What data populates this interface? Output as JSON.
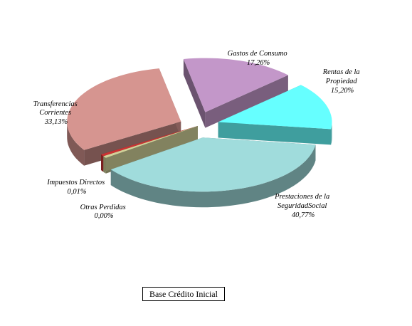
{
  "chart_data": {
    "type": "pie",
    "caption": "Base Crédito  Inicial",
    "slices": [
      {
        "name": "Gastos de Consumo",
        "value_label": "17,26%",
        "value": 17.26,
        "color": "#c397c9",
        "exploded": true
      },
      {
        "name": "Rentas de la Propiedad",
        "value_label": "15,20%",
        "value": 15.2,
        "color": "#66ffff",
        "exploded": true
      },
      {
        "name": "Prestaciones de la SeguridadSocial",
        "value_label": "40,77%",
        "value": 40.77,
        "color": "#a0dcdc",
        "exploded": true
      },
      {
        "name": "Otras Perdidas",
        "value_label": "0,00%",
        "value": 0.0,
        "color": "#d2d29a",
        "exploded": false
      },
      {
        "name": "Impuestos Directos",
        "value_label": "0,01%",
        "value": 0.01,
        "color": "#cc3333",
        "exploded": false
      },
      {
        "name": "Transferencias Corrientes",
        "value_label": "33,13%",
        "value": 33.13,
        "color": "#d69590",
        "exploded": true
      }
    ],
    "label_lines": {
      "gastos": [
        "Gastos de Consumo",
        "17,26%"
      ],
      "rentas": [
        "Rentas de la",
        "Propiedad",
        "15,20%"
      ],
      "prestaciones": [
        "Prestaciones de la",
        "SeguridadSocial",
        "40,77%"
      ],
      "otras": [
        "Otras Perdidas",
        "0,00%"
      ],
      "impuestos": [
        "Impuestos Directos",
        "0,01%"
      ],
      "transferencias": [
        "Transferencias",
        "Corrientes",
        "33,13%"
      ]
    }
  }
}
